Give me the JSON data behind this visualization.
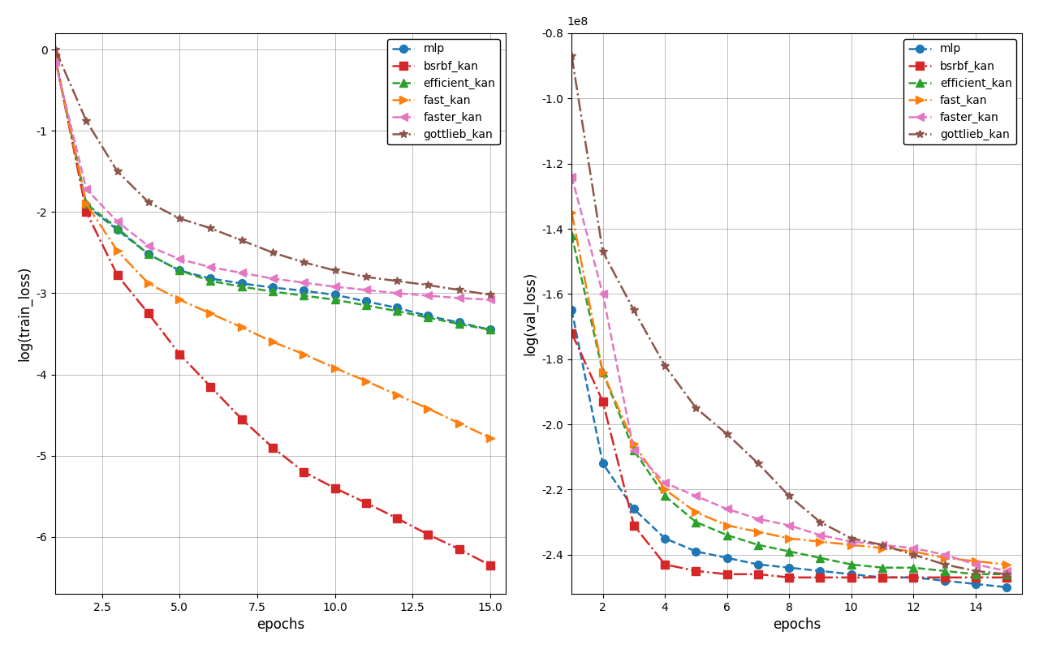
{
  "epochs": [
    1,
    2,
    3,
    4,
    5,
    6,
    7,
    8,
    9,
    10,
    11,
    12,
    13,
    14,
    15
  ],
  "train_loss": {
    "mlp": [
      -0.1,
      -1.92,
      -2.22,
      -2.52,
      -2.72,
      -2.82,
      -2.88,
      -2.93,
      -2.97,
      -3.02,
      -3.1,
      -3.18,
      -3.28,
      -3.36,
      -3.45
    ],
    "bsrbf_kan": [
      -0.1,
      -2.0,
      -2.78,
      -3.25,
      -3.75,
      -4.15,
      -4.55,
      -4.9,
      -5.2,
      -5.4,
      -5.58,
      -5.77,
      -5.97,
      -6.15,
      -6.35
    ],
    "efficient_kan": [
      -0.12,
      -1.9,
      -2.2,
      -2.52,
      -2.72,
      -2.85,
      -2.92,
      -2.98,
      -3.03,
      -3.08,
      -3.15,
      -3.22,
      -3.3,
      -3.38,
      -3.45
    ],
    "fast_kan": [
      -0.12,
      -1.9,
      -2.48,
      -2.88,
      -3.08,
      -3.25,
      -3.42,
      -3.6,
      -3.75,
      -3.92,
      -4.08,
      -4.25,
      -4.42,
      -4.6,
      -4.78
    ],
    "faster_kan": [
      -0.15,
      -1.72,
      -2.12,
      -2.42,
      -2.58,
      -2.68,
      -2.75,
      -2.82,
      -2.87,
      -2.92,
      -2.96,
      -3.0,
      -3.03,
      -3.06,
      -3.08
    ],
    "gottlieb_kan": [
      0.0,
      -0.88,
      -1.5,
      -1.88,
      -2.08,
      -2.2,
      -2.35,
      -2.5,
      -2.62,
      -2.72,
      -2.8,
      -2.85,
      -2.9,
      -2.96,
      -3.02
    ]
  },
  "val_loss": {
    "mlp": [
      -1.65,
      -2.12,
      -2.26,
      -2.35,
      -2.39,
      -2.41,
      -2.43,
      -2.44,
      -2.45,
      -2.46,
      -2.47,
      -2.47,
      -2.48,
      -2.49,
      -2.5
    ],
    "bsrbf_kan": [
      -1.72,
      -1.93,
      -2.31,
      -2.43,
      -2.45,
      -2.46,
      -2.46,
      -2.47,
      -2.47,
      -2.47,
      -2.47,
      -2.47,
      -2.47,
      -2.47,
      -2.47
    ],
    "efficient_kan": [
      -1.42,
      -1.84,
      -2.08,
      -2.22,
      -2.3,
      -2.34,
      -2.37,
      -2.39,
      -2.41,
      -2.43,
      -2.44,
      -2.44,
      -2.45,
      -2.46,
      -2.46
    ],
    "fast_kan": [
      -1.35,
      -1.84,
      -2.06,
      -2.2,
      -2.27,
      -2.31,
      -2.33,
      -2.35,
      -2.36,
      -2.37,
      -2.38,
      -2.39,
      -2.41,
      -2.42,
      -2.43
    ],
    "faster_kan": [
      -1.24,
      -1.6,
      -2.08,
      -2.18,
      -2.22,
      -2.26,
      -2.29,
      -2.31,
      -2.34,
      -2.36,
      -2.37,
      -2.38,
      -2.4,
      -2.43,
      -2.45
    ],
    "gottlieb_kan": [
      -0.87,
      -1.47,
      -1.65,
      -1.82,
      -1.95,
      -2.03,
      -2.12,
      -2.22,
      -2.3,
      -2.35,
      -2.37,
      -2.4,
      -2.43,
      -2.45,
      -2.46
    ]
  },
  "series": [
    {
      "label": "mlp",
      "color": "#1f77b4",
      "marker": "o",
      "linestyle": "--"
    },
    {
      "label": "bsrbf_kan",
      "color": "#d62728",
      "marker": "s",
      "linestyle": "-."
    },
    {
      "label": "efficient_kan",
      "color": "#2ca02c",
      "marker": "^",
      "linestyle": "--"
    },
    {
      "label": "fast_kan",
      "color": "#ff7f0e",
      "marker": ">",
      "linestyle": "-."
    },
    {
      "label": "faster_kan",
      "color": "#e377c2",
      "marker": "<",
      "linestyle": "--"
    },
    {
      "label": "gottlieb_kan",
      "color": "#8c564b",
      "marker": "*",
      "linestyle": "-."
    }
  ],
  "train_ylabel": "log(train_loss)",
  "val_ylabel": "log(val_loss)",
  "xlabel": "epochs",
  "train_ylim": [
    -6.7,
    0.2
  ],
  "val_ylim_raw": [
    -2.52,
    -0.82
  ],
  "val_scale": 100000000.0,
  "xticks": [
    2.5,
    5.0,
    7.5,
    10.0,
    12.5,
    15.0
  ],
  "train_yticks": [
    0,
    -1,
    -2,
    -3,
    -4,
    -5,
    -6
  ],
  "val_yticks_raw": [
    -0.8,
    -1.0,
    -1.2,
    -1.4,
    -1.6,
    -1.8,
    -2.0,
    -2.2,
    -2.4
  ],
  "markersize": 7,
  "linewidth": 1.8
}
